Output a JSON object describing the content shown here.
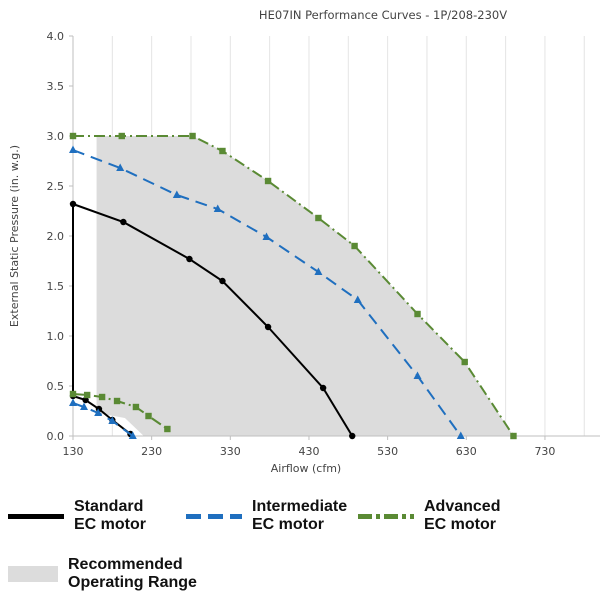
{
  "chart_data": {
    "type": "line",
    "title": "HE07IN Performance Curves - 1P/208-230V",
    "xlabel": "Airflow (cfm)",
    "ylabel": "External Static Pressure (in. w.g.)",
    "xlim": [
      130,
      800
    ],
    "ylim": [
      0,
      4.0
    ],
    "xticks": [
      130,
      230,
      330,
      430,
      530,
      630,
      730
    ],
    "yticks": [
      0.0,
      0.5,
      1.0,
      1.5,
      2.0,
      2.5,
      3.0,
      3.5,
      4.0
    ],
    "ytick_labels": [
      "0.0",
      "0.5",
      "1.0",
      "1.5",
      "2.0",
      "2.5",
      "3.0",
      "3.5",
      "4.0"
    ],
    "grid": "vertical",
    "recommended_range": [
      [
        160,
        3.0
      ],
      [
        282,
        3.0
      ],
      [
        320,
        2.85
      ],
      [
        378,
        2.55
      ],
      [
        442,
        2.18
      ],
      [
        488,
        1.9
      ],
      [
        568,
        1.22
      ],
      [
        628,
        0.74
      ],
      [
        690,
        0.0
      ],
      [
        220,
        0.0
      ],
      [
        196,
        0.18
      ],
      [
        160,
        0.23
      ]
    ],
    "series": [
      {
        "name": "Standard EC motor",
        "color": "#000000",
        "style": "solid",
        "marker": "circle",
        "high": [
          [
            130,
            2.32
          ],
          [
            194,
            2.14
          ],
          [
            278,
            1.77
          ],
          [
            320,
            1.55
          ],
          [
            378,
            1.09
          ],
          [
            448,
            0.48
          ],
          [
            485,
            0.0
          ]
        ],
        "low": [
          [
            130,
            0.4
          ],
          [
            146,
            0.36
          ],
          [
            163,
            0.27
          ],
          [
            180,
            0.16
          ],
          [
            203,
            0.02
          ]
        ],
        "closing": [
          [
            130,
            2.32
          ],
          [
            130,
            0.4
          ]
        ]
      },
      {
        "name": "Intermediate EC motor",
        "color": "#1f6fbf",
        "style": "dash",
        "marker": "triangle",
        "high": [
          [
            130,
            2.86
          ],
          [
            190,
            2.68
          ],
          [
            262,
            2.41
          ],
          [
            314,
            2.27
          ],
          [
            376,
            1.99
          ],
          [
            442,
            1.64
          ],
          [
            492,
            1.36
          ],
          [
            568,
            0.6
          ],
          [
            623,
            0.0
          ]
        ],
        "low": [
          [
            130,
            0.33
          ],
          [
            144,
            0.29
          ],
          [
            162,
            0.23
          ],
          [
            180,
            0.15
          ],
          [
            206,
            0.0
          ]
        ]
      },
      {
        "name": "Advanced EC motor",
        "color": "#5a8a34",
        "style": "dashdot",
        "marker": "square",
        "high": [
          [
            130,
            3.0
          ],
          [
            192,
            3.0
          ],
          [
            282,
            3.0
          ],
          [
            320,
            2.85
          ],
          [
            378,
            2.55
          ],
          [
            442,
            2.18
          ],
          [
            488,
            1.9
          ],
          [
            568,
            1.22
          ],
          [
            628,
            0.74
          ],
          [
            690,
            0.0
          ]
        ],
        "low": [
          [
            130,
            0.42
          ],
          [
            148,
            0.41
          ],
          [
            167,
            0.39
          ],
          [
            186,
            0.35
          ],
          [
            210,
            0.29
          ],
          [
            226,
            0.2
          ],
          [
            250,
            0.07
          ]
        ]
      }
    ]
  },
  "legend": {
    "standard": [
      "Standard",
      "EC motor"
    ],
    "intermediate": [
      "Intermediate",
      "EC motor"
    ],
    "advanced": [
      "Advanced",
      "EC motor"
    ],
    "range": [
      "Recommended",
      "Operating Range"
    ]
  }
}
